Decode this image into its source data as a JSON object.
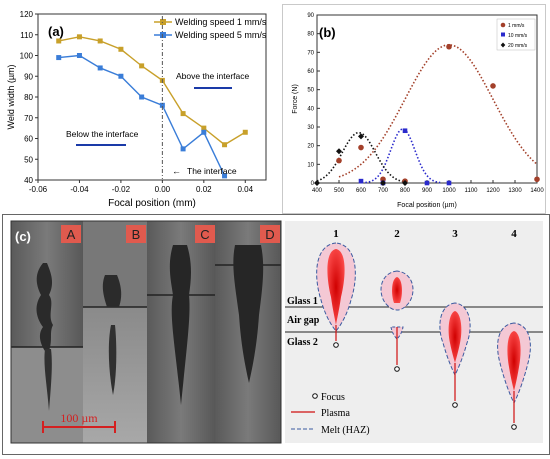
{
  "chart_data": [
    {
      "panel_label": "(a)",
      "type": "line",
      "xlabel": "Focal position (mm)",
      "ylabel": "Weld width (µm)",
      "xlim": [
        -0.06,
        0.05
      ],
      "ylim": [
        40,
        120
      ],
      "x_ticks": [
        "-0.06",
        "-0.04",
        "-0.02",
        "0.00",
        "0.02",
        "0.04"
      ],
      "x_tick_values": [
        -0.06,
        -0.04,
        -0.02,
        0.0,
        0.02,
        0.04
      ],
      "y_ticks": [
        "40",
        "50",
        "60",
        "70",
        "80",
        "90",
        "100",
        "110",
        "120"
      ],
      "y_tick_values": [
        40,
        50,
        60,
        70,
        80,
        90,
        100,
        110,
        120
      ],
      "legend_position": "top-right",
      "series": [
        {
          "name": "Welding speed 1 mm/s",
          "color": "#c8a02a",
          "x": [
            -0.05,
            -0.04,
            -0.03,
            -0.02,
            -0.01,
            0.0,
            0.01,
            0.02,
            0.03,
            0.04
          ],
          "y": [
            107,
            109,
            107,
            103,
            95,
            88,
            72,
            65,
            57,
            63
          ]
        },
        {
          "name": "Welding speed 5 mm/s",
          "color": "#3a7dd8",
          "x": [
            -0.05,
            -0.04,
            -0.03,
            -0.02,
            -0.01,
            0.0,
            0.01,
            0.02,
            0.03
          ],
          "y": [
            99,
            100,
            94,
            90,
            80,
            76,
            55,
            63,
            42
          ]
        }
      ],
      "annotations": {
        "above": "Above the interface",
        "below": "Below the interface",
        "interface": "The interface"
      }
    },
    {
      "panel_label": "(b)",
      "type": "scatter",
      "xlabel": "Focal position (µm)",
      "ylabel": "Force (N)",
      "xlim": [
        400,
        1400
      ],
      "ylim": [
        0,
        90
      ],
      "x_ticks": [
        "400",
        "500",
        "600",
        "700",
        "800",
        "900",
        "1000",
        "1100",
        "1200",
        "1300",
        "1400"
      ],
      "x_tick_values": [
        400,
        500,
        600,
        700,
        800,
        900,
        1000,
        1100,
        1200,
        1300,
        1400
      ],
      "y_ticks": [
        "0",
        "10",
        "20",
        "30",
        "40",
        "50",
        "60",
        "70",
        "80",
        "90"
      ],
      "y_tick_values": [
        0,
        10,
        20,
        30,
        40,
        50,
        60,
        70,
        80,
        90
      ],
      "legend_position": "top-right",
      "series": [
        {
          "name": "1 mm/s",
          "color": "#a3402a",
          "x": [
            500,
            600,
            700,
            800,
            1000,
            1200,
            1400
          ],
          "y": [
            12,
            19,
            2,
            1,
            73,
            52,
            2
          ]
        },
        {
          "name": "10 mm/s",
          "color": "#2a2acc",
          "x": [
            600,
            700,
            800,
            900,
            1000
          ],
          "y": [
            1,
            0,
            28,
            0,
            0
          ]
        },
        {
          "name": "20 mm/s",
          "color": "#111111",
          "x": [
            400,
            500,
            600,
            700,
            800
          ],
          "y": [
            0,
            17,
            25,
            0,
            0
          ]
        }
      ]
    }
  ],
  "panel_c": {
    "label": "(c)",
    "image_labels": [
      "A",
      "B",
      "C",
      "D"
    ],
    "scale_bar": "100 µm",
    "column_numbers": [
      "1",
      "2",
      "3",
      "4"
    ],
    "layer_labels": {
      "glass1": "Glass 1",
      "air_gap": "Air gap",
      "glass2": "Glass 2"
    },
    "legend": {
      "focus": "Focus",
      "plasma": "Plasma",
      "melt": "Melt (HAZ)"
    },
    "colors": {
      "label_box": "#e05a4e",
      "plasma": "#e01010",
      "melt": "#3a5aa0"
    }
  }
}
